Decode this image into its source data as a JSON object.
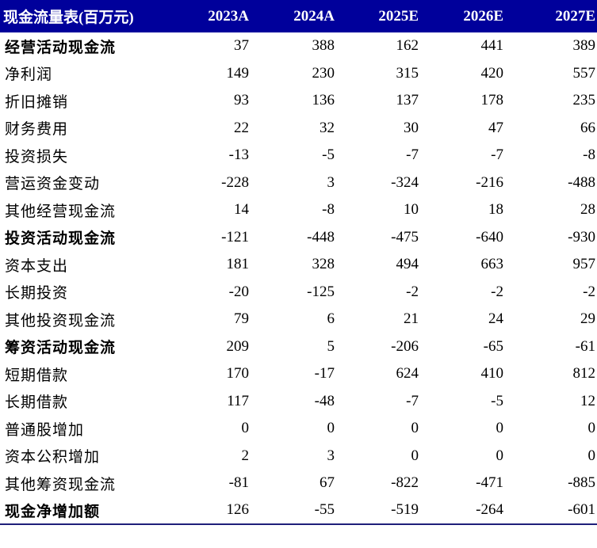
{
  "colors": {
    "header_bg": "#00009b",
    "header_text": "#ffffff",
    "bottom_rule": "#1e1e7a"
  },
  "table": {
    "header": {
      "label": "现金流量表(百万元)",
      "years": [
        "2023A",
        "2024A",
        "2025E",
        "2026E",
        "2027E"
      ]
    },
    "rows": [
      {
        "label": "经营活动现金流",
        "bold": true,
        "values": [
          "37",
          "388",
          "162",
          "441",
          "389"
        ]
      },
      {
        "label": "净利润",
        "bold": false,
        "values": [
          "149",
          "230",
          "315",
          "420",
          "557"
        ]
      },
      {
        "label": "折旧摊销",
        "bold": false,
        "values": [
          "93",
          "136",
          "137",
          "178",
          "235"
        ]
      },
      {
        "label": "财务费用",
        "bold": false,
        "values": [
          "22",
          "32",
          "30",
          "47",
          "66"
        ]
      },
      {
        "label": "投资损失",
        "bold": false,
        "values": [
          "-13",
          "-5",
          "-7",
          "-7",
          "-8"
        ]
      },
      {
        "label": "营运资金变动",
        "bold": false,
        "values": [
          "-228",
          "3",
          "-324",
          "-216",
          "-488"
        ]
      },
      {
        "label": "其他经营现金流",
        "bold": false,
        "values": [
          "14",
          "-8",
          "10",
          "18",
          "28"
        ]
      },
      {
        "label": "投资活动现金流",
        "bold": true,
        "values": [
          "-121",
          "-448",
          "-475",
          "-640",
          "-930"
        ]
      },
      {
        "label": "资本支出",
        "bold": false,
        "values": [
          "181",
          "328",
          "494",
          "663",
          "957"
        ]
      },
      {
        "label": "长期投资",
        "bold": false,
        "values": [
          "-20",
          "-125",
          "-2",
          "-2",
          "-2"
        ]
      },
      {
        "label": "其他投资现金流",
        "bold": false,
        "values": [
          "79",
          "6",
          "21",
          "24",
          "29"
        ]
      },
      {
        "label": "筹资活动现金流",
        "bold": true,
        "values": [
          "209",
          "5",
          "-206",
          "-65",
          "-61"
        ]
      },
      {
        "label": "短期借款",
        "bold": false,
        "values": [
          "170",
          "-17",
          "624",
          "410",
          "812"
        ]
      },
      {
        "label": "长期借款",
        "bold": false,
        "values": [
          "117",
          "-48",
          "-7",
          "-5",
          "12"
        ]
      },
      {
        "label": "普通股增加",
        "bold": false,
        "values": [
          "0",
          "0",
          "0",
          "0",
          "0"
        ]
      },
      {
        "label": "资本公积增加",
        "bold": false,
        "values": [
          "2",
          "3",
          "0",
          "0",
          "0"
        ]
      },
      {
        "label": "其他筹资现金流",
        "bold": false,
        "values": [
          "-81",
          "67",
          "-822",
          "-471",
          "-885"
        ]
      },
      {
        "label": "现金净增加额",
        "bold": true,
        "values": [
          "126",
          "-55",
          "-519",
          "-264",
          "-601"
        ]
      }
    ]
  }
}
